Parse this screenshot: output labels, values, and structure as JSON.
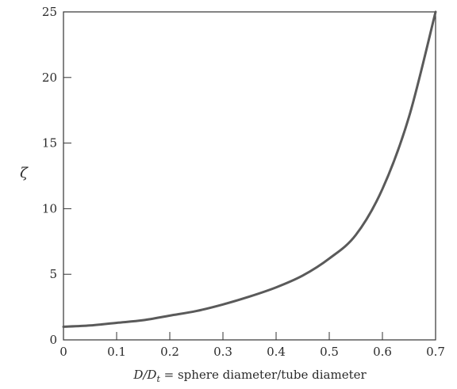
{
  "chart_data": {
    "type": "line",
    "title": "",
    "xlabel": {
      "pre": "D/D",
      "sub": "t",
      "post": " = sphere diameter/tube diameter"
    },
    "ylabel": "ζ",
    "xlim": [
      0,
      0.7
    ],
    "ylim": [
      0,
      25
    ],
    "x_ticks": [
      0,
      0.1,
      0.2,
      0.3,
      0.4,
      0.5,
      0.6,
      0.7
    ],
    "x_tick_labels": [
      "0",
      "0.1",
      "0.2",
      "0.3",
      "0.4",
      "0.5",
      "0.6",
      "0.7"
    ],
    "y_ticks": [
      0,
      5,
      10,
      15,
      20,
      25
    ],
    "y_tick_labels": [
      "0",
      "5",
      "10",
      "15",
      "20",
      "25"
    ],
    "grid": false,
    "legend": "none",
    "series": [
      {
        "color": "#5a5a5a",
        "x": [
          0,
          0.05,
          0.1,
          0.15,
          0.2,
          0.25,
          0.3,
          0.35,
          0.4,
          0.45,
          0.5,
          0.55,
          0.6,
          0.65,
          0.7
        ],
        "y": [
          1.0,
          1.1,
          1.3,
          1.5,
          1.85,
          2.2,
          2.7,
          3.3,
          4.0,
          4.9,
          6.2,
          8.0,
          11.5,
          17.0,
          25.0
        ]
      }
    ]
  }
}
